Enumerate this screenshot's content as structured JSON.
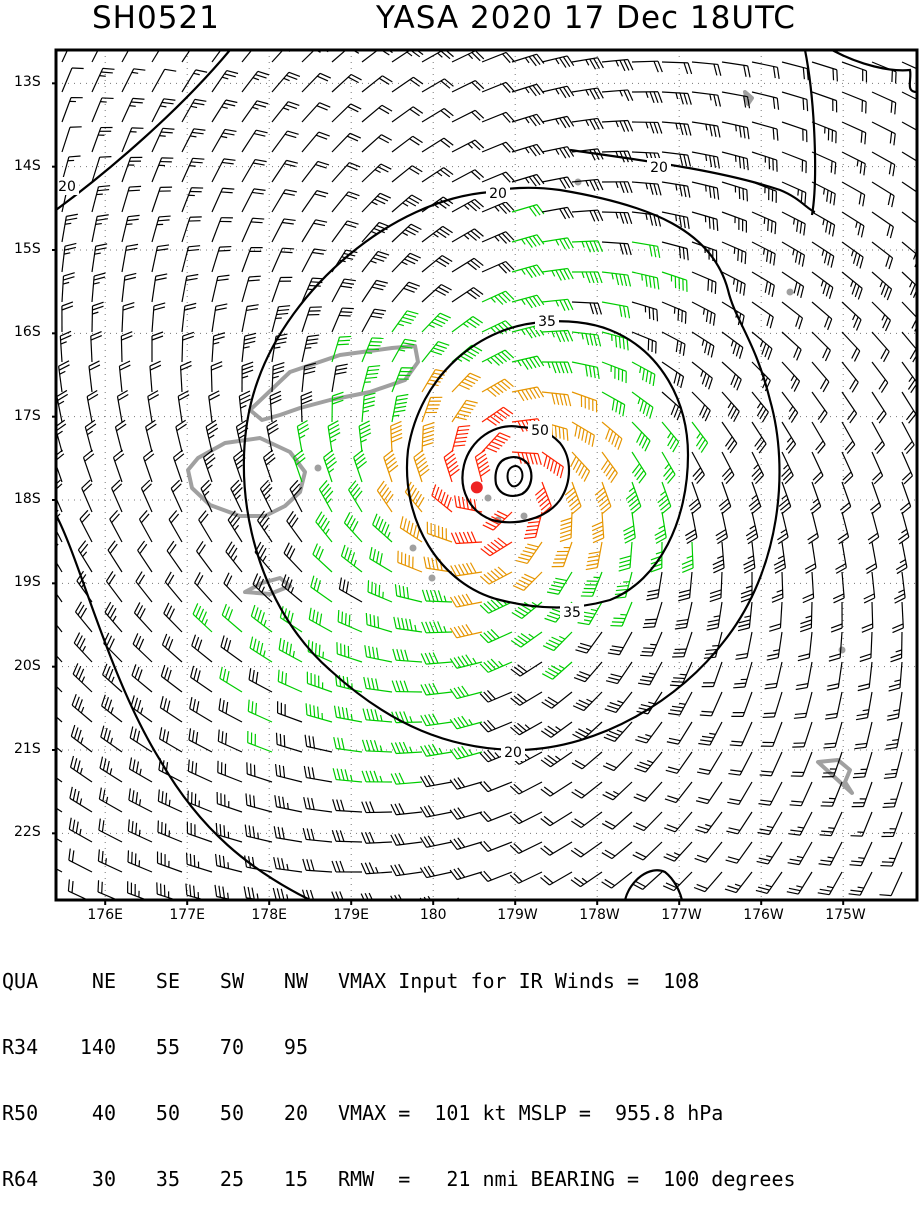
{
  "title": {
    "storm_id": "SH0521",
    "name_time": "YASA 2020 17 Dec 18UTC"
  },
  "map": {
    "lon_min": 175.4,
    "lon_max": 185.9,
    "lat_min": -22.8,
    "lat_max": -12.6,
    "lat_labels": [
      "13S",
      "14S",
      "15S",
      "16S",
      "17S",
      "18S",
      "19S",
      "20S",
      "21S",
      "22S"
    ],
    "lon_labels": [
      "176E",
      "177E",
      "178E",
      "179E",
      "180",
      "179W",
      "178W",
      "177W",
      "176W",
      "175W"
    ],
    "center": {
      "lon": 180.8,
      "lat": -17.8
    },
    "contour_labels": [
      "20",
      "20",
      "20",
      "20",
      "35",
      "35",
      "50"
    ],
    "wind_colors": {
      "below_34": "#000000",
      "34_to_50": "#00cc00",
      "50_to_64": "#e69500",
      "64_plus": "#ff2200"
    },
    "land_color": "#a0a0a0",
    "center_marker_color": "#ee2222"
  },
  "stats": {
    "header": [
      "QUA",
      "NE",
      "SE",
      "SW",
      "NW"
    ],
    "rows": [
      {
        "label": "R34",
        "values": [
          "140",
          "55",
          "70",
          "95"
        ]
      },
      {
        "label": "R50",
        "values": [
          "40",
          "50",
          "50",
          "20"
        ]
      },
      {
        "label": "R64",
        "values": [
          "30",
          "35",
          "25",
          "15"
        ]
      }
    ],
    "line1": "VMAX Input for IR Winds =  108",
    "line2": "",
    "line3": "VMAX =  101 kt MSLP =  955.8 hPa",
    "line4": "RMW  =   21 nmi BEARING =  100 degrees"
  }
}
